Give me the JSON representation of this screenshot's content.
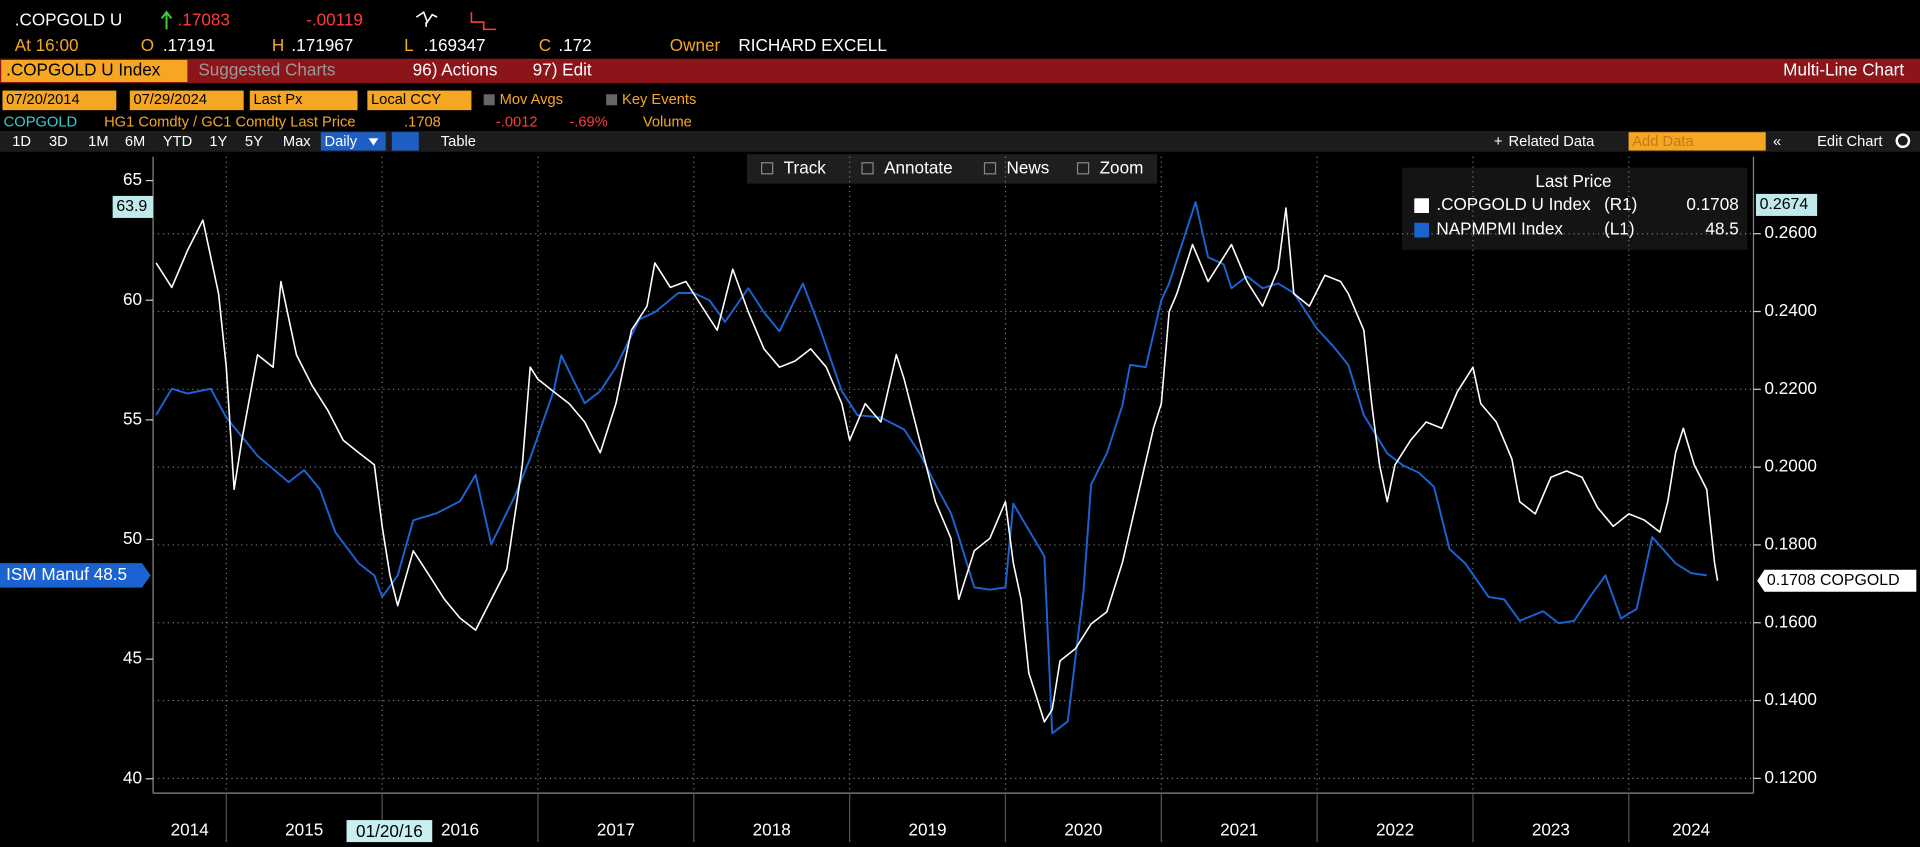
{
  "header": {
    "ticker": ".COPGOLD U",
    "last": ".17083",
    "change": "-.00119",
    "time": "At 16:00",
    "open_label": "O",
    "open": ".17191",
    "high_label": "H",
    "high": ".171967",
    "low_label": "L",
    "low": ".169347",
    "close_label": "C",
    "close": ".172",
    "owner_label": "Owner",
    "owner": "RICHARD EXCELL"
  },
  "toolbar": {
    "security": ".COPGOLD U Index",
    "suggested": "Suggested Charts",
    "actions": "96) Actions",
    "edit": "97) Edit",
    "chart_kind": "Multi-Line Chart"
  },
  "settings": {
    "start": "07/20/2014",
    "end": "07/29/2024",
    "field": "Last Px",
    "currency": "Local CCY",
    "mov_avgs": "Mov Avgs",
    "key_events": "Key Events"
  },
  "info": {
    "name": "COPGOLD",
    "description": "HG1 Comdty / GC1 Comdty Last Price",
    "price": ".1708",
    "change": "-.0012",
    "change_pct": "-.69%",
    "volume": "Volume"
  },
  "periods": [
    "1D",
    "3D",
    "1M",
    "6M",
    "YTD",
    "1Y",
    "5Y",
    "Max"
  ],
  "controls": {
    "frequency": "Daily",
    "table": "Table",
    "related": "Related Data",
    "add_data": "Add Data",
    "edit_chart": "Edit Chart"
  },
  "chart_tools": [
    "Track",
    "Annotate",
    "News",
    "Zoom"
  ],
  "chart_data": {
    "type": "line",
    "legend_title": "Last Price",
    "xlim": [
      2014.53,
      2024.8
    ],
    "xticks": [
      2015,
      2016,
      2017,
      2018,
      2019,
      2020,
      2021,
      2022,
      2023,
      2024
    ],
    "year_labels": [
      "2014",
      "2015",
      "2016",
      "2017",
      "2018",
      "2019",
      "2020",
      "2021",
      "2022",
      "2023",
      "2024"
    ],
    "ylim": [
      39.4,
      66
    ],
    "yticks": [
      40,
      45,
      50,
      55,
      60,
      65
    ],
    "y2lim": [
      0.1162,
      0.2798
    ],
    "y2ticks": [
      {
        "value": 0.12,
        "label": "0.1200"
      },
      {
        "value": 0.14,
        "label": "0.1400"
      },
      {
        "value": 0.16,
        "label": "0.1600"
      },
      {
        "value": 0.18,
        "label": "0.1800"
      },
      {
        "value": 0.2,
        "label": "0.2000"
      },
      {
        "value": 0.22,
        "label": "0.2200"
      },
      {
        "value": 0.24,
        "label": "0.2400"
      },
      {
        "value": 0.26,
        "label": "0.2600"
      }
    ],
    "grid": true,
    "crosshair": {
      "y": 63.9,
      "y2": 0.2674,
      "date": "01/20/16"
    },
    "series": [
      {
        "name": ".COPGOLD U Index",
        "axis_tag": "(R1)",
        "legend_value": "0.1708",
        "end_label": "0.1708 COPGOLD",
        "color": "#ffffff",
        "axis": "y2",
        "x": [
          2014.55,
          2014.65,
          2014.75,
          2014.85,
          2014.95,
          2015.0,
          2015.05,
          2015.1,
          2015.2,
          2015.3,
          2015.35,
          2015.45,
          2015.55,
          2015.65,
          2015.75,
          2015.85,
          2015.95,
          2016.0,
          2016.05,
          2016.1,
          2016.2,
          2016.3,
          2016.4,
          2016.5,
          2016.6,
          2016.7,
          2016.8,
          2016.9,
          2016.95,
          2017.0,
          2017.1,
          2017.2,
          2017.3,
          2017.4,
          2017.5,
          2017.6,
          2017.7,
          2017.75,
          2017.85,
          2017.95,
          2018.05,
          2018.15,
          2018.25,
          2018.35,
          2018.45,
          2018.55,
          2018.65,
          2018.75,
          2018.85,
          2018.95,
          2019.0,
          2019.1,
          2019.2,
          2019.3,
          2019.35,
          2019.45,
          2019.55,
          2019.65,
          2019.7,
          2019.8,
          2019.9,
          2020.0,
          2020.05,
          2020.1,
          2020.15,
          2020.2,
          2020.25,
          2020.3,
          2020.35,
          2020.45,
          2020.55,
          2020.65,
          2020.75,
          2020.85,
          2020.95,
          2021.0,
          2021.05,
          2021.1,
          2021.2,
          2021.3,
          2021.4,
          2021.45,
          2021.55,
          2021.65,
          2021.75,
          2021.8,
          2021.85,
          2021.95,
          2022.05,
          2022.15,
          2022.2,
          2022.3,
          2022.35,
          2022.4,
          2022.45,
          2022.5,
          2022.6,
          2022.7,
          2022.8,
          2022.9,
          2023.0,
          2023.05,
          2023.15,
          2023.25,
          2023.3,
          2023.4,
          2023.5,
          2023.6,
          2023.7,
          2023.8,
          2023.9,
          2024.0,
          2024.1,
          2024.2,
          2024.25,
          2024.3,
          2024.35,
          2024.42,
          2024.5,
          2024.55,
          2024.57
        ],
        "values": [
          0.2525,
          0.2462,
          0.2556,
          0.2635,
          0.2446,
          0.2257,
          0.1943,
          0.2069,
          0.2289,
          0.2257,
          0.2477,
          0.2289,
          0.221,
          0.2147,
          0.2069,
          0.2037,
          0.2006,
          0.1848,
          0.1723,
          0.1644,
          0.1785,
          0.1723,
          0.166,
          0.1612,
          0.1581,
          0.166,
          0.1738,
          0.2006,
          0.2257,
          0.2226,
          0.2194,
          0.2163,
          0.2116,
          0.2037,
          0.2163,
          0.2352,
          0.2414,
          0.2525,
          0.2462,
          0.2477,
          0.2414,
          0.2352,
          0.2509,
          0.2399,
          0.2304,
          0.2257,
          0.2273,
          0.2304,
          0.2257,
          0.2163,
          0.2069,
          0.2163,
          0.2116,
          0.2289,
          0.2226,
          0.2069,
          0.1911,
          0.1817,
          0.166,
          0.1785,
          0.1817,
          0.1911,
          0.1754,
          0.166,
          0.1471,
          0.1408,
          0.1345,
          0.1377,
          0.1502,
          0.1534,
          0.1597,
          0.1628,
          0.1754,
          0.1927,
          0.21,
          0.2163,
          0.2399,
          0.2446,
          0.2572,
          0.2477,
          0.254,
          0.2572,
          0.2477,
          0.2414,
          0.2509,
          0.2666,
          0.2446,
          0.2414,
          0.2493,
          0.2477,
          0.2446,
          0.2352,
          0.2163,
          0.2006,
          0.1911,
          0.2006,
          0.2069,
          0.2116,
          0.21,
          0.2194,
          0.2257,
          0.2163,
          0.2116,
          0.2021,
          0.1911,
          0.188,
          0.1974,
          0.199,
          0.1974,
          0.1896,
          0.1848,
          0.188,
          0.1864,
          0.1833,
          0.1911,
          0.2037,
          0.21,
          0.2006,
          0.1943,
          0.1754,
          0.1708
        ]
      },
      {
        "name": "NAPMPMI Index",
        "axis_tag": "(L1)",
        "legend_value": "48.5",
        "end_label": "ISM Manuf 48.5",
        "color": "#1b63d1",
        "axis": "y",
        "x": [
          2014.55,
          2014.65,
          2014.75,
          2014.9,
          2015.0,
          2015.2,
          2015.4,
          2015.5,
          2015.6,
          2015.7,
          2015.85,
          2015.95,
          2016.0,
          2016.1,
          2016.2,
          2016.35,
          2016.5,
          2016.6,
          2016.7,
          2016.85,
          2016.95,
          2017.1,
          2017.15,
          2017.3,
          2017.4,
          2017.5,
          2017.65,
          2017.75,
          2017.9,
          2018.0,
          2018.1,
          2018.2,
          2018.35,
          2018.45,
          2018.55,
          2018.7,
          2018.8,
          2018.95,
          2019.05,
          2019.2,
          2019.35,
          2019.45,
          2019.55,
          2019.65,
          2019.7,
          2019.8,
          2019.9,
          2020.0,
          2020.05,
          2020.15,
          2020.25,
          2020.3,
          2020.4,
          2020.5,
          2020.55,
          2020.65,
          2020.75,
          2020.8,
          2020.9,
          2021.0,
          2021.05,
          2021.22,
          2021.3,
          2021.4,
          2021.45,
          2021.55,
          2021.65,
          2021.75,
          2021.85,
          2022.0,
          2022.1,
          2022.2,
          2022.3,
          2022.45,
          2022.55,
          2022.65,
          2022.75,
          2022.85,
          2022.95,
          2023.1,
          2023.2,
          2023.3,
          2023.45,
          2023.55,
          2023.65,
          2023.75,
          2023.85,
          2023.95,
          2024.05,
          2024.15,
          2024.3,
          2024.4,
          2024.5
        ],
        "values": [
          55.2,
          56.3,
          56.1,
          56.3,
          55.1,
          53.5,
          52.4,
          52.9,
          52.1,
          50.3,
          49.0,
          48.5,
          47.6,
          48.5,
          50.8,
          51.1,
          51.6,
          52.7,
          49.8,
          51.8,
          53.4,
          56.2,
          57.7,
          55.7,
          56.2,
          57.2,
          59.2,
          59.5,
          60.3,
          60.3,
          60.0,
          59.1,
          60.5,
          59.5,
          58.7,
          60.7,
          59.0,
          56.2,
          55.2,
          55.1,
          54.6,
          53.6,
          52.3,
          51.1,
          50.1,
          48.0,
          47.9,
          48.0,
          51.5,
          50.4,
          49.3,
          41.9,
          42.4,
          47.8,
          52.3,
          53.6,
          55.6,
          57.3,
          57.2,
          60.0,
          60.7,
          64.1,
          61.8,
          61.5,
          60.5,
          61.0,
          60.5,
          60.7,
          60.3,
          58.8,
          58.1,
          57.3,
          55.2,
          53.6,
          53.1,
          52.8,
          52.2,
          49.6,
          49.0,
          47.6,
          47.5,
          46.6,
          47.0,
          46.5,
          46.6,
          47.6,
          48.5,
          46.7,
          47.1,
          50.1,
          49.0,
          48.6,
          48.5
        ]
      }
    ]
  }
}
